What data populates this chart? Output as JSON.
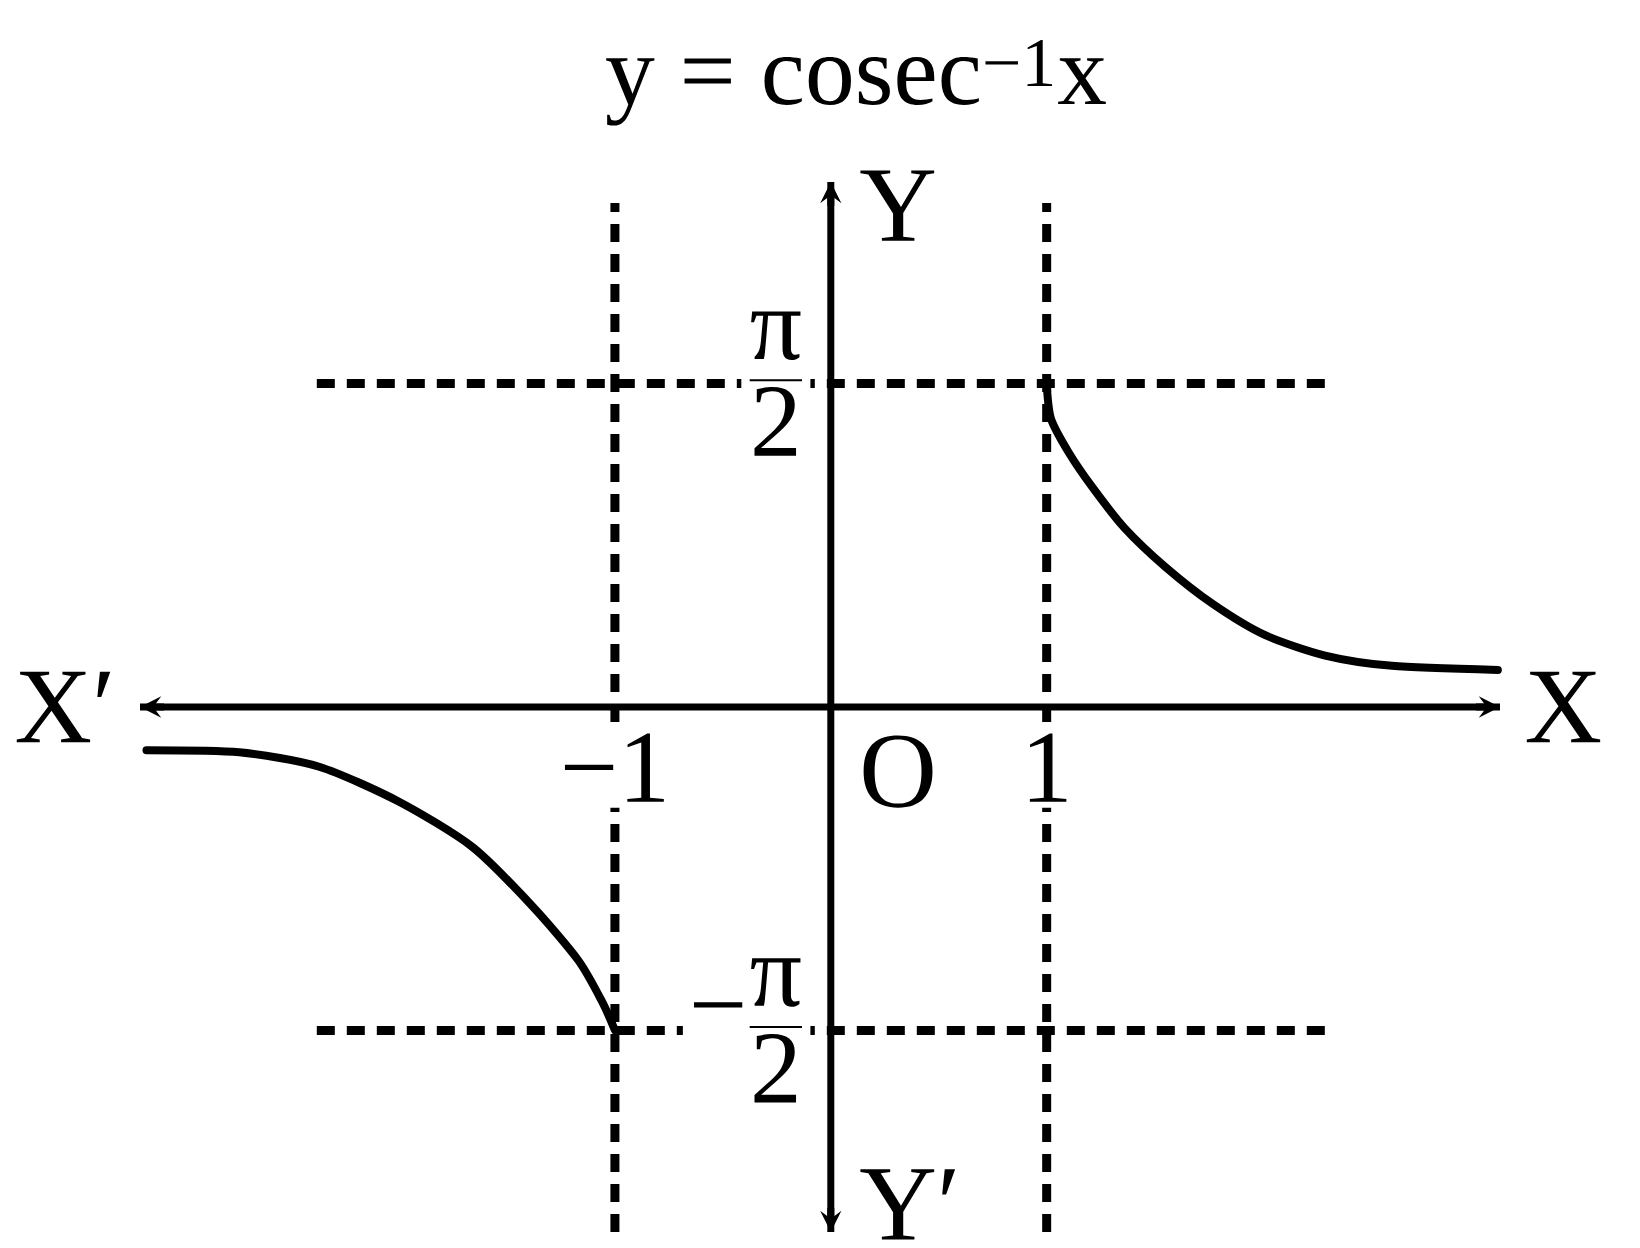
{
  "chart_data": {
    "type": "line",
    "title": "y = cosec$^{−1}$x",
    "xlabel": "X",
    "ylabel": "Y",
    "annotations": [
      "X′",
      "Y′",
      "O"
    ],
    "series": [
      {
        "x": [
          -3.17,
          -2.74,
          -2.37,
          -2.0,
          -1.66,
          -1.38,
          -1.17,
          -1.06,
          -1
        ],
        "values": [
          -0.21,
          -0.22,
          -0.29,
          -0.46,
          -0.68,
          -0.97,
          -1.23,
          -1.43,
          -1.57
        ],
        "color": "#000000"
      },
      {
        "x": [
          1,
          1.02,
          1.1,
          1.21,
          1.36,
          1.55,
          1.77,
          2.01,
          2.29,
          2.6,
          3.09
        ],
        "values": [
          1.57,
          1.4,
          1.24,
          1.07,
          0.87,
          0.68,
          0.5,
          0.35,
          0.25,
          0.2,
          0.18
        ],
        "color": "#000000"
      }
    ],
    "xlim": [
      -3.2,
      3.1
    ],
    "ylim": [
      -2.55,
      2.55
    ],
    "xticks": [
      {
        "value": -1,
        "label": "−1"
      },
      1
    ],
    "yticks": [
      {
        "value": 1.5708,
        "label": "\\frac{\\text{π}}{\\text{2}}"
      },
      {
        "value": -1.5708,
        "label": "\\text{−}\\frac{\\text{π}}{\\text{2}}"
      }
    ],
    "ref_lines": [
      {
        "axis": "x",
        "value": -1,
        "line_style": "dashed"
      },
      {
        "axis": "x",
        "value": 1,
        "line_style": "dashed"
      },
      {
        "axis": "y",
        "value": 1.5708,
        "line_style": "dashed"
      },
      {
        "axis": "y",
        "value": -1.5708,
        "line_style": "dashed"
      }
    ]
  }
}
